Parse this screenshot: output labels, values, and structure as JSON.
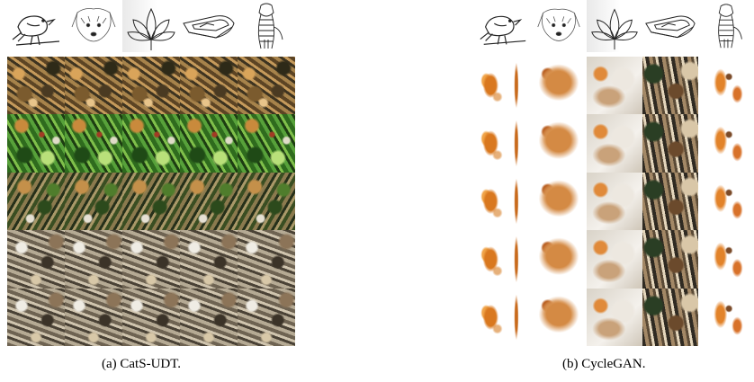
{
  "figure": {
    "panels": [
      {
        "id": "a",
        "caption": "(a) CatS-UDT.",
        "sketch_icons": [
          "bird-sketch",
          "dog-sketch",
          "flower-sketch",
          "boat-sketch",
          "tiger-sketch"
        ],
        "rows": [
          [
            "tex-brown",
            "tex-brown",
            "tex-brown",
            "tex-brown",
            "tex-brown"
          ],
          [
            "tex-green",
            "tex-green",
            "tex-green",
            "tex-green",
            "tex-green"
          ],
          [
            "tex-mixed",
            "tex-mixed",
            "tex-mixed",
            "tex-mixed",
            "tex-mixed"
          ],
          [
            "tex-gray",
            "tex-gray",
            "tex-gray",
            "tex-gray",
            "tex-gray"
          ],
          [
            "tex-gray",
            "tex-gray",
            "tex-gray",
            "tex-gray",
            "tex-gray"
          ]
        ]
      },
      {
        "id": "b",
        "caption": "(b) CycleGAN.",
        "sketch_icons": [
          "bird-sketch",
          "dog-sketch",
          "flower-sketch",
          "boat-sketch",
          "tiger-sketch"
        ],
        "rows": [
          [
            "b-bird",
            "b-dog",
            "b-flower",
            "b-boat",
            "b-tiger"
          ],
          [
            "b-bird",
            "b-dog",
            "b-flower",
            "b-boat",
            "b-tiger"
          ],
          [
            "b-bird",
            "b-dog",
            "b-flower",
            "b-boat",
            "b-tiger"
          ],
          [
            "b-bird",
            "b-dog",
            "b-flower",
            "b-boat",
            "b-tiger"
          ],
          [
            "b-bird",
            "b-dog",
            "b-flower",
            "b-boat",
            "b-tiger"
          ]
        ]
      }
    ]
  }
}
